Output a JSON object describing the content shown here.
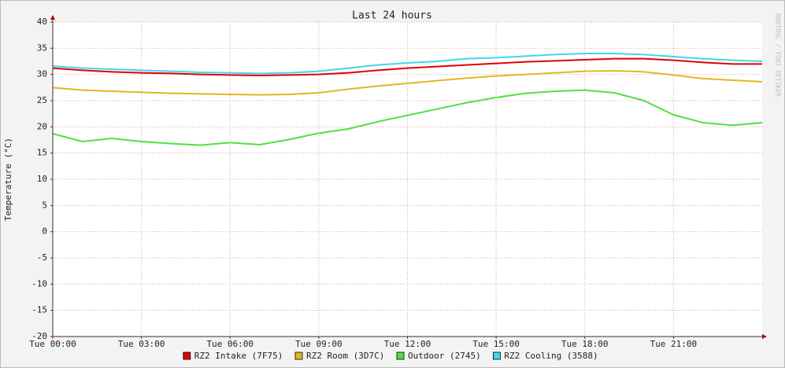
{
  "chart_data": {
    "type": "line",
    "title": "Last 24 hours",
    "ylabel": "Temperature (°C)",
    "side_text": "RRDTOOL / TOBI OETIKER",
    "x": [
      0,
      1,
      2,
      3,
      4,
      5,
      6,
      7,
      8,
      9,
      10,
      11,
      12,
      13,
      14,
      15,
      16,
      17,
      18,
      19,
      20,
      21,
      22,
      23,
      24
    ],
    "xlim": [
      0,
      24
    ],
    "xticks": [
      {
        "value": 0,
        "label": "Tue 00:00"
      },
      {
        "value": 3,
        "label": "Tue 03:00"
      },
      {
        "value": 6,
        "label": "Tue 06:00"
      },
      {
        "value": 9,
        "label": "Tue 09:00"
      },
      {
        "value": 12,
        "label": "Tue 12:00"
      },
      {
        "value": 15,
        "label": "Tue 15:00"
      },
      {
        "value": 18,
        "label": "Tue 18:00"
      },
      {
        "value": 21,
        "label": "Tue 21:00"
      }
    ],
    "ylim": [
      -20,
      40
    ],
    "yticks": [
      -20,
      -15,
      -10,
      -5,
      0,
      5,
      10,
      15,
      20,
      25,
      30,
      35,
      40
    ],
    "grid": true,
    "series": [
      {
        "name": "RZ2 Intake (7F75)",
        "color": "#e00000",
        "values": [
          31.2,
          30.8,
          30.5,
          30.3,
          30.2,
          30.0,
          29.9,
          29.8,
          29.9,
          30.0,
          30.3,
          30.8,
          31.2,
          31.5,
          31.8,
          32.1,
          32.4,
          32.6,
          32.8,
          33.0,
          33.0,
          32.7,
          32.3,
          32.0,
          32.0
        ]
      },
      {
        "name": "RZ2 Room (3D7C)",
        "color": "#e0b820",
        "values": [
          27.5,
          27.0,
          26.8,
          26.6,
          26.4,
          26.3,
          26.2,
          26.1,
          26.2,
          26.5,
          27.2,
          27.8,
          28.3,
          28.8,
          29.3,
          29.7,
          30.0,
          30.3,
          30.6,
          30.7,
          30.5,
          29.9,
          29.2,
          28.9,
          28.6
        ]
      },
      {
        "name": "Outdoor (2745)",
        "color": "#50e040",
        "values": [
          18.7,
          17.2,
          17.8,
          17.2,
          16.8,
          16.5,
          17.0,
          16.6,
          17.6,
          18.8,
          19.6,
          21.0,
          22.2,
          23.4,
          24.6,
          25.6,
          26.4,
          26.8,
          27.0,
          26.5,
          25.0,
          22.3,
          20.8,
          20.3,
          20.8
        ]
      },
      {
        "name": "RZ2 Cooling (3588)",
        "color": "#40d8e8",
        "values": [
          31.6,
          31.2,
          31.0,
          30.8,
          30.6,
          30.4,
          30.3,
          30.2,
          30.3,
          30.6,
          31.2,
          31.8,
          32.2,
          32.5,
          33.0,
          33.2,
          33.5,
          33.8,
          34.0,
          34.0,
          33.8,
          33.4,
          33.0,
          32.7,
          32.5
        ]
      }
    ]
  }
}
